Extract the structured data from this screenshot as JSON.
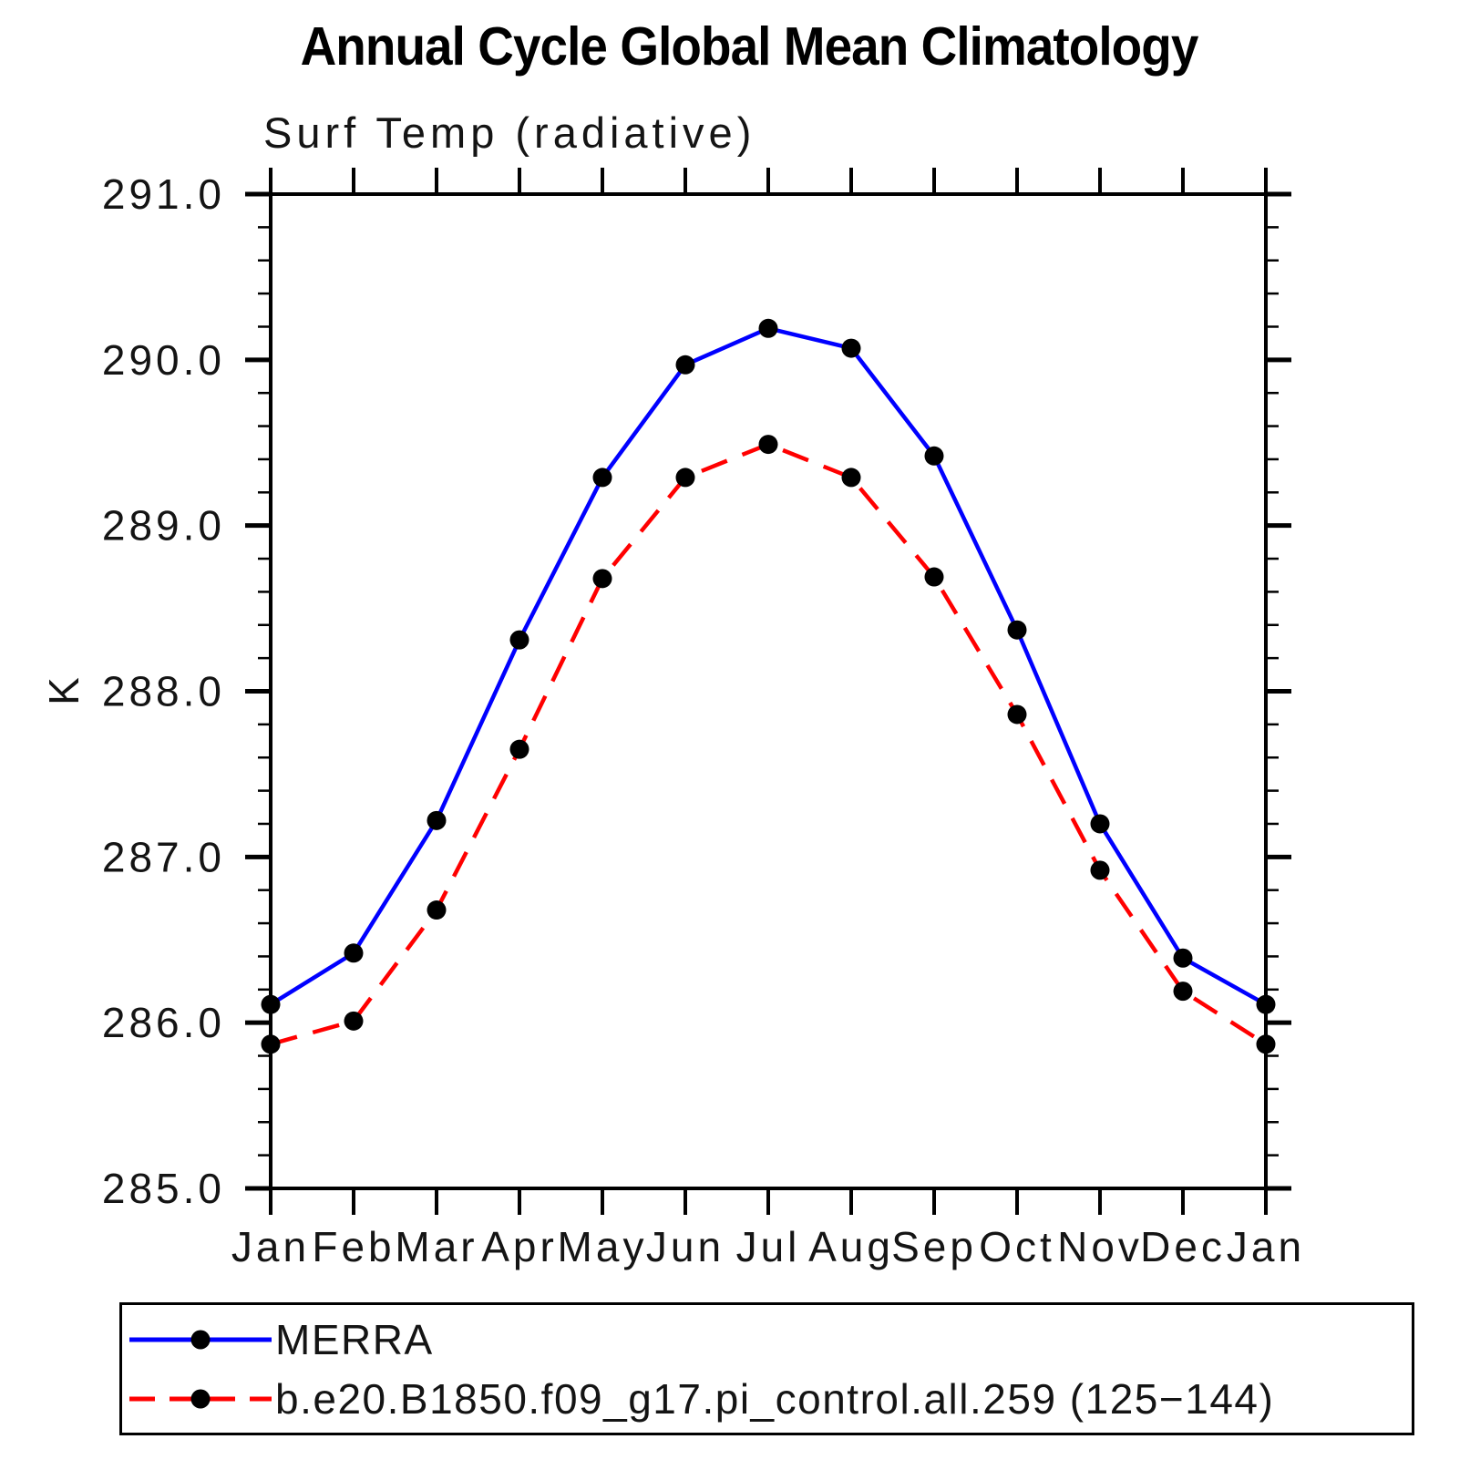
{
  "header": {
    "title": "Annual Cycle Global Mean Climatology",
    "subtitle": "Surf Temp (radiative)"
  },
  "chart_data": {
    "type": "line",
    "title": "Annual Cycle Global Mean Climatology",
    "subtitle": "Surf Temp (radiative)",
    "xlabel": "",
    "ylabel": "K",
    "categories": [
      "Jan",
      "Feb",
      "Mar",
      "Apr",
      "May",
      "Jun",
      "Jul",
      "Aug",
      "Sep",
      "Oct",
      "Nov",
      "Dec",
      "Jan"
    ],
    "ylim": [
      285.0,
      291.0
    ],
    "ytick_major_interval": 1.0,
    "ytick_minor_interval": 0.2,
    "ytick_labels": [
      "291.0",
      "290.0",
      "289.0",
      "288.0",
      "287.0",
      "286.0",
      "285.0"
    ],
    "grid": false,
    "legend_position": "bottom-left-box",
    "frame_color": "#000000",
    "series": [
      {
        "name": "MERRA",
        "line_color": "#0000ff",
        "line_style": "solid",
        "marker": "filled-circle",
        "marker_color": "#000000",
        "values": [
          286.11,
          286.42,
          287.22,
          288.31,
          289.29,
          289.97,
          290.19,
          290.07,
          289.42,
          288.37,
          287.2,
          286.39,
          286.11
        ]
      },
      {
        "name": "b.e20.B1850.f09_g17.pi_control.all.259 (125−144)",
        "line_color": "#ff0000",
        "line_style": "dashed",
        "marker": "filled-circle",
        "marker_color": "#000000",
        "values": [
          285.87,
          286.01,
          286.68,
          287.65,
          288.68,
          289.29,
          289.49,
          289.29,
          288.69,
          287.86,
          286.92,
          286.19,
          285.87
        ]
      }
    ]
  }
}
